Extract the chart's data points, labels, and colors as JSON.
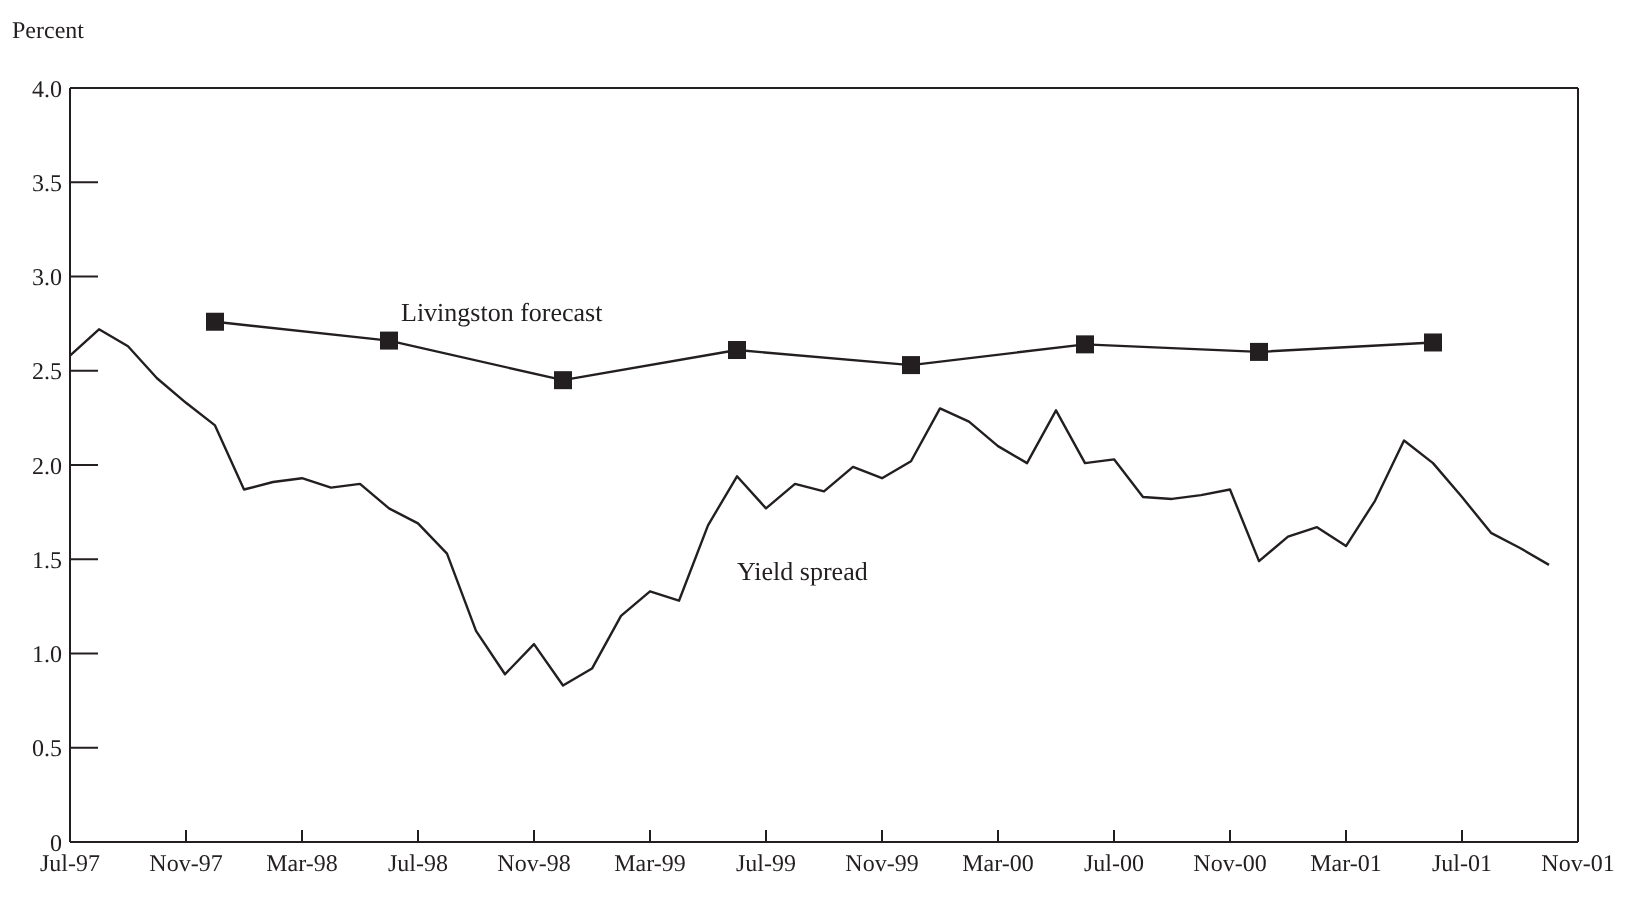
{
  "chart_data": {
    "type": "line",
    "ylabel": "Percent",
    "xlim": [
      "1997-07",
      "2001-11"
    ],
    "xticks": [
      {
        "value": "1997-07",
        "label": "Jul-97"
      },
      {
        "value": "1997-11",
        "label": "Nov-97"
      },
      {
        "value": "1998-03",
        "label": "Mar-98"
      },
      {
        "value": "1998-07",
        "label": "Jul-98"
      },
      {
        "value": "1998-11",
        "label": "Nov-98"
      },
      {
        "value": "1999-03",
        "label": "Mar-99"
      },
      {
        "value": "1999-07",
        "label": "Jul-99"
      },
      {
        "value": "1999-11",
        "label": "Nov-99"
      },
      {
        "value": "2000-03",
        "label": "Mar-00"
      },
      {
        "value": "2000-07",
        "label": "Jul-00"
      },
      {
        "value": "2000-11",
        "label": "Nov-00"
      },
      {
        "value": "2001-03",
        "label": "Mar-01"
      },
      {
        "value": "2001-07",
        "label": "Jul-01"
      },
      {
        "value": "2001-11",
        "label": "Nov-01"
      }
    ],
    "ylim": [
      0,
      4
    ],
    "yticks": [
      0,
      0.5,
      {
        "value": 1,
        "label": "1.0"
      },
      1.5,
      {
        "value": 2,
        "label": "2.0"
      },
      2.5,
      {
        "value": 3,
        "label": "3.0"
      },
      3.5,
      {
        "value": 4,
        "label": "4.0"
      }
    ],
    "series": [
      {
        "name": "Livingston forecast",
        "color": "#231f20",
        "marker": "square",
        "x": [
          "1997-12",
          "1998-06",
          "1998-12",
          "1999-06",
          "1999-12",
          "2000-06",
          "2000-12",
          "2001-06"
        ],
        "values": [
          2.76,
          2.66,
          2.45,
          2.61,
          2.53,
          2.64,
          2.6,
          2.65
        ]
      },
      {
        "name": "Yield spread",
        "color": "#231f20",
        "marker": "none",
        "x": [
          "1997-07",
          "1997-08",
          "1997-09",
          "1997-10",
          "1997-11",
          "1997-12",
          "1998-01",
          "1998-02",
          "1998-03",
          "1998-04",
          "1998-05",
          "1998-06",
          "1998-07",
          "1998-08",
          "1998-09",
          "1998-10",
          "1998-11",
          "1998-12",
          "1999-01",
          "1999-02",
          "1999-03",
          "1999-04",
          "1999-05",
          "1999-06",
          "1999-07",
          "1999-08",
          "1999-09",
          "1999-10",
          "1999-11",
          "1999-12",
          "2000-01",
          "2000-02",
          "2000-03",
          "2000-04",
          "2000-05",
          "2000-06",
          "2000-07",
          "2000-08",
          "2000-09",
          "2000-10",
          "2000-11",
          "2000-12",
          "2001-01",
          "2001-02",
          "2001-03",
          "2001-04",
          "2001-05",
          "2001-06",
          "2001-07",
          "2001-08",
          "2001-09",
          "2001-10"
        ],
        "values": [
          2.58,
          2.72,
          2.63,
          2.46,
          2.33,
          2.21,
          1.87,
          1.91,
          1.93,
          1.88,
          1.9,
          1.77,
          1.69,
          1.53,
          1.12,
          0.89,
          1.05,
          0.83,
          0.92,
          1.2,
          1.33,
          1.28,
          1.68,
          1.94,
          1.77,
          1.9,
          1.86,
          1.99,
          1.93,
          2.02,
          2.3,
          2.23,
          2.1,
          2.01,
          2.29,
          2.01,
          2.03,
          1.83,
          1.82,
          1.84,
          1.87,
          1.49,
          1.62,
          1.67,
          1.57,
          1.81,
          2.13,
          2.01,
          1.83,
          1.64,
          1.56,
          1.47
        ]
      }
    ]
  }
}
